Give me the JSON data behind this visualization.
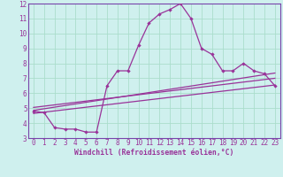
{
  "xlabel": "Windchill (Refroidissement éolien,°C)",
  "background_color": "#cff0ee",
  "grid_color": "#aaddcc",
  "line_color": "#993399",
  "spine_color": "#7744aa",
  "xlim": [
    -0.5,
    23.5
  ],
  "ylim": [
    3,
    12
  ],
  "yticks": [
    3,
    4,
    5,
    6,
    7,
    8,
    9,
    10,
    11,
    12
  ],
  "xticks": [
    0,
    1,
    2,
    3,
    4,
    5,
    6,
    7,
    8,
    9,
    10,
    11,
    12,
    13,
    14,
    15,
    16,
    17,
    18,
    19,
    20,
    21,
    22,
    23
  ],
  "line1_x": [
    0,
    1,
    2,
    3,
    4,
    5,
    6,
    7,
    8,
    9,
    10,
    11,
    12,
    13,
    14,
    15,
    16,
    17,
    18,
    19,
    20,
    21,
    22,
    23
  ],
  "line1_y": [
    4.8,
    4.7,
    3.7,
    3.6,
    3.6,
    3.4,
    3.4,
    6.5,
    7.5,
    7.5,
    9.2,
    10.7,
    11.3,
    11.6,
    12.0,
    11.0,
    9.0,
    8.6,
    7.5,
    7.5,
    8.0,
    7.5,
    7.3,
    6.5
  ],
  "line2_x": [
    0,
    23
  ],
  "line2_y": [
    4.85,
    7.35
  ],
  "line3_x": [
    0,
    23
  ],
  "line3_y": [
    5.05,
    7.0
  ],
  "line4_x": [
    0,
    23
  ],
  "line4_y": [
    4.65,
    6.55
  ],
  "tick_fontsize": 5.5,
  "xlabel_fontsize": 5.8
}
